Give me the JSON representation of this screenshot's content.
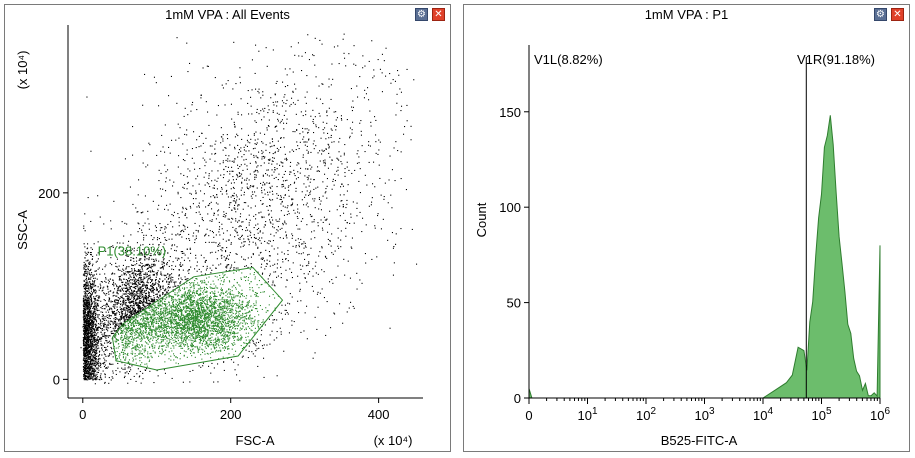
{
  "left_panel": {
    "title": "1mM VPA : All Events"
  },
  "right_panel": {
    "title": "1mM VPA : P1"
  },
  "icons": {
    "settings": "settings-gear-icon",
    "close": "close-x-icon"
  },
  "colors": {
    "gate": "#2e8b2e",
    "event": "#000000",
    "histogram_fill": "#6cbd6c",
    "histogram_line": "#2f7d2f",
    "close_button": "#e0412a",
    "settings_button": "#5a6f94"
  },
  "chart_data": [
    {
      "type": "scatter",
      "title": "1mM VPA : All Events",
      "xlabel": "FSC-A",
      "ylabel": "SSC-A",
      "x_multiplier_label": "(x 10⁴)",
      "y_multiplier_label": "(x 10⁴)",
      "xlim": [
        -20,
        460
      ],
      "ylim": [
        -20,
        380
      ],
      "x_ticks": [
        0,
        200,
        400
      ],
      "y_ticks": [
        0,
        200
      ],
      "x_tick_labels": [
        "0",
        "200",
        "400"
      ],
      "y_tick_labels": [
        "0",
        "200"
      ],
      "gate": {
        "name": "P1",
        "label": "P1(38.10%)",
        "polygon": [
          [
            55,
            60
          ],
          [
            150,
            110
          ],
          [
            230,
            120
          ],
          [
            270,
            85
          ],
          [
            210,
            25
          ],
          [
            100,
            10
          ],
          [
            45,
            20
          ],
          [
            40,
            45
          ]
        ]
      },
      "populations": [
        {
          "cx": 10,
          "cy": 45,
          "sx": 12,
          "sy": 35
        },
        {
          "cx": 70,
          "cy": 75,
          "sx": 25,
          "sy": 30
        },
        {
          "cx": 155,
          "cy": 65,
          "sx": 38,
          "sy": 18
        },
        {
          "cx": 230,
          "cy": 180,
          "sx": 90,
          "sy": 75
        }
      ]
    },
    {
      "type": "area",
      "title": "1mM VPA : P1",
      "xlabel": "B525-FITC-A",
      "ylabel": "Count",
      "x_scale": "biexponential",
      "xlim": [
        0,
        6
      ],
      "ylim": [
        0,
        185
      ],
      "x_ticks": [
        0,
        1,
        2,
        3,
        4,
        5,
        6
      ],
      "x_tick_labels": [
        {
          "base": "0",
          "exp": ""
        },
        {
          "base": "10",
          "exp": "1"
        },
        {
          "base": "10",
          "exp": "2"
        },
        {
          "base": "10",
          "exp": "3"
        },
        {
          "base": "10",
          "exp": "4"
        },
        {
          "base": "10",
          "exp": "5"
        },
        {
          "base": "10",
          "exp": "6"
        }
      ],
      "y_ticks": [
        0,
        50,
        100,
        150
      ],
      "y_tick_labels": [
        "0",
        "50",
        "100",
        "150"
      ],
      "histogram": {
        "x": [
          0.0,
          0.05,
          4.0,
          4.2,
          4.4,
          4.5,
          4.6,
          4.7,
          4.75,
          4.8,
          4.85,
          4.9,
          4.95,
          5.0,
          5.05,
          5.1,
          5.15,
          5.2,
          5.25,
          5.3,
          5.35,
          5.4,
          5.45,
          5.5,
          5.55,
          5.6,
          5.65,
          5.7,
          5.75,
          5.8,
          5.85,
          5.9,
          5.95,
          6.0
        ],
        "counts": [
          5,
          0,
          0,
          4,
          8,
          12,
          22,
          26,
          18,
          40,
          55,
          72,
          92,
          110,
          128,
          138,
          152,
          130,
          112,
          88,
          68,
          52,
          40,
          30,
          22,
          16,
          12,
          9,
          7,
          5,
          3,
          2,
          1,
          80
        ]
      },
      "gates": [
        {
          "name": "V1L",
          "label": "V1L(8.82%)",
          "x_start": 0,
          "x_end": 4.74
        },
        {
          "name": "V1R",
          "label": "V1R(91.18%)",
          "x_start": 4.74,
          "x_end": 6
        }
      ]
    }
  ]
}
